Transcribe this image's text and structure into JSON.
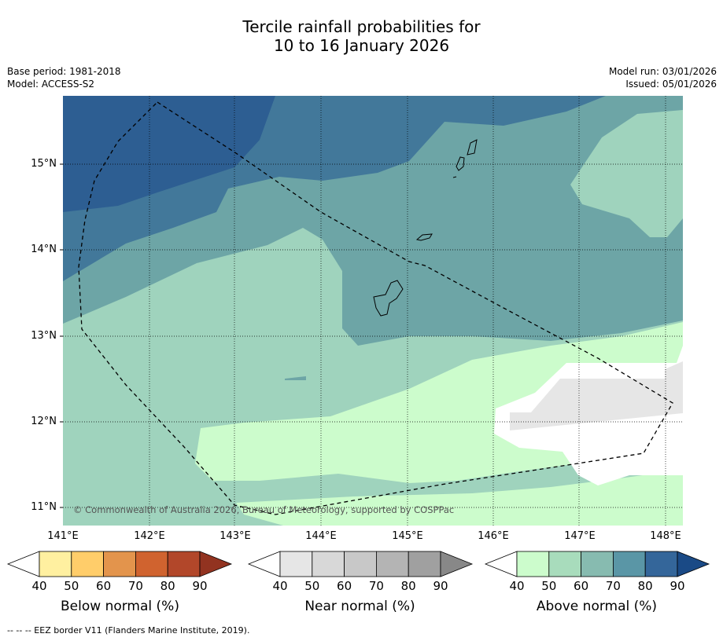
{
  "title_line1": "Tercile rainfall probabilities for",
  "title_line2": "10 to 16 January 2026",
  "meta": {
    "base_period": "Base period: 1981-2018",
    "model": "Model: ACCESS-S2",
    "model_run": "Model run: 03/01/2026",
    "issued": "Issued: 05/01/2026"
  },
  "lat_labels": [
    "15°N",
    "14°N",
    "13°N",
    "12°N",
    "11°N"
  ],
  "lon_labels": [
    "141°E",
    "142°E",
    "143°E",
    "144°E",
    "145°E",
    "146°E",
    "147°E",
    "148°E"
  ],
  "copyright": "© Commonwealth of Australia 2026, Bureau of Meteorology, supported by COSPPac",
  "colorbars": [
    {
      "title": "Below normal (%)",
      "ticks": [
        "40",
        "50",
        "60",
        "70",
        "80",
        "90"
      ],
      "colors": [
        "#fff0a0",
        "#ffcd6a",
        "#e3944c",
        "#d0632f",
        "#b2472a",
        "#923320"
      ]
    },
    {
      "title": "Near normal (%)",
      "ticks": [
        "40",
        "50",
        "60",
        "70",
        "80",
        "90"
      ],
      "colors": [
        "#e6e6e6",
        "#d8d8d8",
        "#c8c8c8",
        "#b4b4b4",
        "#a0a0a0",
        "#888888"
      ]
    },
    {
      "title": "Above normal (%)",
      "ticks": [
        "40",
        "50",
        "60",
        "70",
        "80",
        "90"
      ],
      "colors": [
        "#ccfccc",
        "#a8dcbc",
        "#87bbb0",
        "#5a96a6",
        "#34669a",
        "#1a4a86"
      ]
    }
  ],
  "map_colors": {
    "above_40": "#ccfccc",
    "above_50": "#9fd3bd",
    "above_60": "#6da5a6",
    "above_70": "#42789a",
    "above_80": "#2d5e92",
    "near_40": "#e6e6e6"
  },
  "legend_footer": "--  --  -- EEZ border V11 (Flanders Marine Institute, 2019)."
}
